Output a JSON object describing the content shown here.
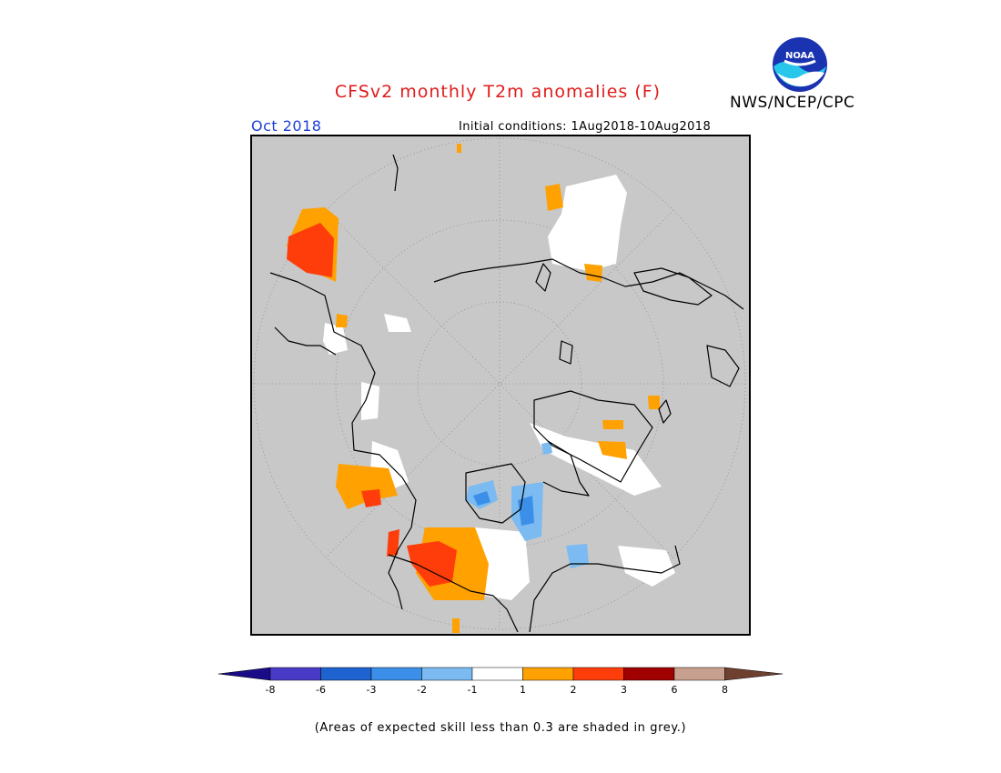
{
  "header": {
    "title": "CFSv2 monthly T2m anomalies (F)",
    "agency": "NWS/NCEP/CPC",
    "logo_text": "NOAA",
    "month": "Oct 2018",
    "initial_conditions": "Initial conditions: 1Aug2018-10Aug2018"
  },
  "map": {
    "projection": "north-polar-stereographic",
    "variable": "T2m anomaly",
    "units": "F",
    "no_skill_color": "#c8c8c8",
    "coastline_color": "#000000"
  },
  "legend": {
    "ticks": [
      "-8",
      "-6",
      "-3",
      "-2",
      "-1",
      "1",
      "2",
      "3",
      "6",
      "8"
    ],
    "bins": [
      {
        "range": "< -8",
        "color": "#1a0c86"
      },
      {
        "range": "-8 to -6",
        "color": "#4a3bc6"
      },
      {
        "range": "-6 to -3",
        "color": "#1f63d0"
      },
      {
        "range": "-3 to -2",
        "color": "#3c8fe8"
      },
      {
        "range": "-2 to -1",
        "color": "#7bbbf2"
      },
      {
        "range": "-1 to 1",
        "color": "#ffffff"
      },
      {
        "range": "1 to 2",
        "color": "#ffa100"
      },
      {
        "range": "2 to 3",
        "color": "#ff3d0a"
      },
      {
        "range": "3 to 6",
        "color": "#a10000"
      },
      {
        "range": "6 to 8",
        "color": "#c8a090"
      },
      {
        "range": "> 8",
        "color": "#6e4030"
      }
    ]
  },
  "footnote": "(Areas of expected skill less than 0.3 are shaded in grey.)"
}
